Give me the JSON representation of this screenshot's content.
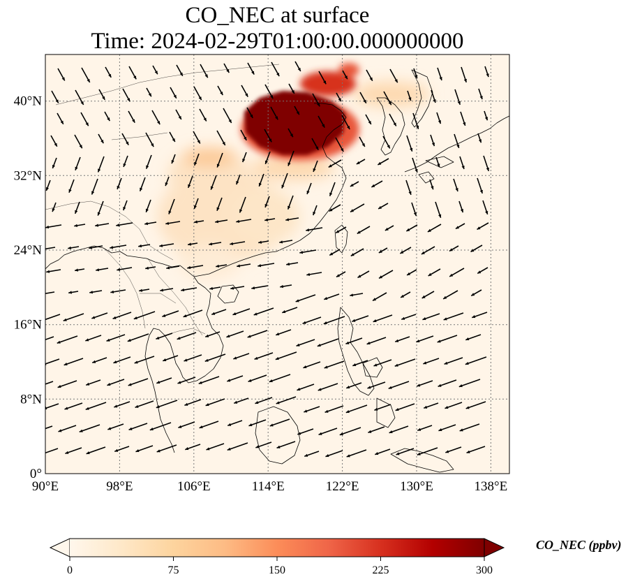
{
  "title": {
    "line1": "CO_NEC at surface",
    "line2": "Time: 2024-02-29T01:00:00.000000000"
  },
  "map": {
    "lon_range": [
      90,
      140
    ],
    "lat_range": [
      0,
      45
    ],
    "lon_ticks": [
      "90°E",
      "98°E",
      "106°E",
      "114°E",
      "122°E",
      "130°E",
      "138°E"
    ],
    "lon_values": [
      90,
      98,
      106,
      114,
      122,
      130,
      138
    ],
    "lat_ticks": [
      "0°",
      "8°N",
      "16°N",
      "24°N",
      "32°N",
      "40°N"
    ],
    "lat_values": [
      0,
      8,
      16,
      24,
      32,
      40
    ],
    "gridlines": true,
    "colormap": "OrRd"
  },
  "colorbar": {
    "label": "CO_NEC (ppbv)",
    "min": 0,
    "max": 300,
    "ticks": [
      "0",
      "75",
      "150",
      "225",
      "300"
    ],
    "tick_values": [
      0,
      75,
      150,
      225,
      300
    ],
    "extend": "both",
    "colors": [
      "#fff7ec",
      "#fee8c8",
      "#fdd49e",
      "#fdbb84",
      "#fc8d59",
      "#ef6548",
      "#d7301f",
      "#b30000",
      "#7f0000"
    ]
  }
}
